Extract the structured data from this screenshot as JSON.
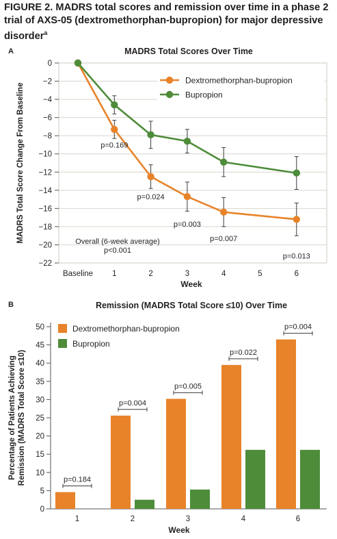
{
  "figure": {
    "title": "FIGURE 2.  MADRS total scores and remission over time in a phase 2 trial of AXS-05 (dextromethorphan-bupropion) for major depressive disorder",
    "title_superscript": "a"
  },
  "colors": {
    "orange": "#e8832a",
    "green": "#4e8c3a",
    "frame": "#cfcac0",
    "grid": "#d9d5cc",
    "text": "#231f20"
  },
  "chart_data": [
    {
      "panel_label": "A",
      "type": "line",
      "title": "MADRS Total Scores Over Time",
      "xlabel": "Week",
      "ylabel": "MADRS Total Score Change From Baseline",
      "categories": [
        "Baseline",
        "1",
        "2",
        "3",
        "4",
        "5",
        "6"
      ],
      "x": [
        0,
        1,
        2,
        3,
        4,
        6
      ],
      "ylim": [
        -22,
        0
      ],
      "yticks": [
        "0",
        "−2",
        "−4",
        "−6",
        "−8",
        "−10",
        "−12",
        "−14",
        "−16",
        "−18",
        "−20",
        "−22"
      ],
      "grid": true,
      "legend_position": "top-right",
      "series": [
        {
          "name": "Dextromethorphan-bupropion",
          "color": "#e8832a",
          "values": [
            0,
            -7.3,
            -12.5,
            -14.7,
            -16.4,
            -17.2
          ],
          "errors": [
            0,
            1.0,
            1.3,
            1.6,
            1.6,
            1.8
          ]
        },
        {
          "name": "Bupropion",
          "color": "#4e8c3a",
          "values": [
            0,
            -4.6,
            -7.9,
            -8.6,
            -10.9,
            -12.1
          ],
          "errors": [
            0,
            1.0,
            1.5,
            1.3,
            1.6,
            1.8
          ]
        }
      ],
      "annotations": [
        {
          "text": "p=0.169",
          "x": 1,
          "y": -9.0
        },
        {
          "text": "p=0.024",
          "x": 2,
          "y": -14.7
        },
        {
          "text": "p=0.003",
          "x": 3,
          "y": -17.7
        },
        {
          "text": "p=0.007",
          "x": 4,
          "y": -19.3
        },
        {
          "text": "p=0.013",
          "x": 6,
          "y": -21.2
        }
      ],
      "note_line1": "Overall (6-week average)",
      "note_line2": "p<0.001"
    },
    {
      "panel_label": "B",
      "type": "bar",
      "title": "Remission (MADRS Total Score ≤10) Over Time",
      "xlabel": "Week",
      "ylabel_line1": "Percentage of Patients Achieving",
      "ylabel_line2": "Remission (MADRS Total Score ≤10)",
      "categories": [
        "1",
        "2",
        "3",
        "4",
        "6"
      ],
      "ylim": [
        0,
        50
      ],
      "yticks": [
        "0",
        "5",
        "10",
        "15",
        "20",
        "25",
        "30",
        "35",
        "40",
        "45",
        "50"
      ],
      "legend_position": "top-left",
      "series": [
        {
          "name": "Dextromethorphan-bupropion",
          "color": "#e8832a",
          "values": [
            4.6,
            25.6,
            30.2,
            39.5,
            46.5
          ]
        },
        {
          "name": "Bupropion",
          "color": "#4e8c3a",
          "values": [
            0,
            2.5,
            5.3,
            16.2,
            16.2
          ]
        }
      ],
      "pvalues": [
        "p=0.184",
        "p=0.004",
        "p=0.005",
        "p=0.022",
        "p=0.004"
      ]
    }
  ]
}
